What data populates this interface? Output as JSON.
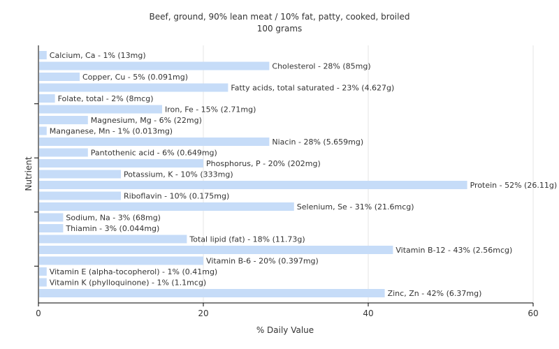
{
  "chart_data": {
    "type": "bar",
    "orientation": "horizontal",
    "title": "Beef, ground, 90% lean meat / 10% fat, patty, cooked, broiled",
    "subtitle": "100 grams",
    "xlabel": "% Daily Value",
    "ylabel": "Nutrient",
    "xlim": [
      0,
      60
    ],
    "xticks": [
      0,
      20,
      40,
      60
    ],
    "grid": true,
    "bar_color": "#c6dcf8",
    "categories": [
      "Calcium, Ca",
      "Cholesterol",
      "Copper, Cu",
      "Fatty acids, total saturated",
      "Folate, total",
      "Iron, Fe",
      "Magnesium, Mg",
      "Manganese, Mn",
      "Niacin",
      "Pantothenic acid",
      "Phosphorus, P",
      "Potassium, K",
      "Protein",
      "Riboflavin",
      "Selenium, Se",
      "Sodium, Na",
      "Thiamin",
      "Total lipid (fat)",
      "Vitamin B-12",
      "Vitamin B-6",
      "Vitamin E (alpha-tocopherol)",
      "Vitamin K (phylloquinone)",
      "Zinc, Zn"
    ],
    "values": [
      1,
      28,
      5,
      23,
      2,
      15,
      6,
      1,
      28,
      6,
      20,
      10,
      52,
      10,
      31,
      3,
      3,
      18,
      43,
      20,
      1,
      1,
      42
    ],
    "labels": [
      "Calcium, Ca - 1% (13mg)",
      "Cholesterol - 28% (85mg)",
      "Copper, Cu - 5% (0.091mg)",
      "Fatty acids, total saturated - 23% (4.627g)",
      "Folate, total - 2% (8mcg)",
      "Iron, Fe - 15% (2.71mg)",
      "Magnesium, Mg - 6% (22mg)",
      "Manganese, Mn - 1% (0.013mg)",
      "Niacin - 28% (5.659mg)",
      "Pantothenic acid - 6% (0.649mg)",
      "Phosphorus, P - 20% (202mg)",
      "Potassium, K - 10% (333mg)",
      "Protein - 52% (26.11g)",
      "Riboflavin - 10% (0.175mg)",
      "Selenium, Se - 31% (21.6mcg)",
      "Sodium, Na - 3% (68mg)",
      "Thiamin - 3% (0.044mg)",
      "Total lipid (fat) - 18% (11.73g)",
      "Vitamin B-12 - 43% (2.56mcg)",
      "Vitamin B-6 - 20% (0.397mg)",
      "Vitamin E (alpha-tocopherol) - 1% (0.41mg)",
      "Vitamin K (phylloquinone) - 1% (1.1mcg)",
      "Zinc, Zn - 42% (6.37mg)"
    ]
  }
}
